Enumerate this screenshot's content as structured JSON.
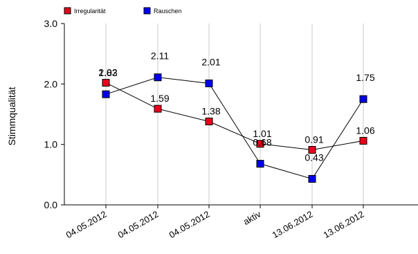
{
  "chart_data": {
    "type": "line",
    "title": "",
    "xlabel": "",
    "ylabel": "Stimmqualität",
    "categories": [
      "04.05.2012",
      "04.05.2012",
      "04.05.2012",
      "aktiv",
      "13.06.2012",
      "13.06.2012"
    ],
    "ylim": [
      0,
      3
    ],
    "yticks": [
      "0.0",
      "1.0",
      "2.0",
      "3.0"
    ],
    "grid": "vertical",
    "legend_position": "top-left",
    "series": [
      {
        "name": "Irregularität",
        "color": "#e8001c",
        "values": [
          2.02,
          1.59,
          1.38,
          1.01,
          0.91,
          1.06
        ],
        "labels": [
          "2.02",
          "1.59",
          "1.38",
          "1.01",
          "0.91",
          "1.06"
        ]
      },
      {
        "name": "Rauschen",
        "color": "#0000ee",
        "values": [
          1.83,
          2.11,
          2.01,
          0.68,
          0.43,
          1.75
        ],
        "labels": [
          "1.83",
          "2.11",
          "2.01",
          "0.68",
          "0.43",
          "1.75"
        ]
      }
    ]
  }
}
